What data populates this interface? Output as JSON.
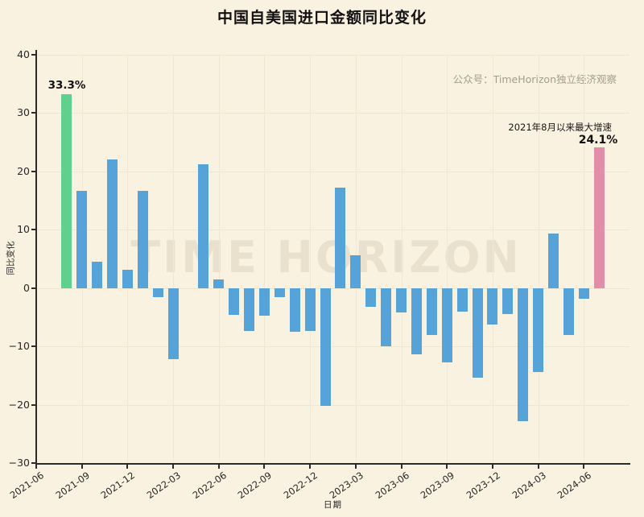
{
  "title": "中国自美国进口金额同比变化",
  "source_note": "公众号：TimeHorizon独立经济观察",
  "watermark": "TIME HORIZON",
  "chart_data": {
    "type": "bar",
    "title": "中国自美国进口金额同比变化",
    "xlabel": "日期",
    "ylabel": "同比变化",
    "ylim": [
      -30,
      40
    ],
    "grid": true,
    "x_domain_start": "2021-06",
    "x_domain_months": 39,
    "y_ticks": [
      40,
      30,
      20,
      10,
      0,
      -10,
      -20,
      -30
    ],
    "x_ticks": [
      "2021-06",
      "2021-09",
      "2021-12",
      "2022-03",
      "2022-06",
      "2022-09",
      "2022-12",
      "2023-03",
      "2023-06",
      "2023-09",
      "2023-12",
      "2024-03",
      "2024-06"
    ],
    "x": [
      "2021-08",
      "2021-09",
      "2021-10",
      "2021-11",
      "2021-12",
      "2022-01",
      "2022-02",
      "2022-03",
      "2022-04",
      "2022-05",
      "2022-06",
      "2022-07",
      "2022-08",
      "2022-09",
      "2022-10",
      "2022-11",
      "2022-12",
      "2023-01",
      "2023-02",
      "2023-03",
      "2023-04",
      "2023-05",
      "2023-06",
      "2023-07",
      "2023-08",
      "2023-09",
      "2023-10",
      "2023-11",
      "2023-12",
      "2024-01",
      "2024-02",
      "2024-03",
      "2024-04",
      "2024-05",
      "2024-06",
      "2024-07"
    ],
    "values": [
      33.3,
      16.6,
      4.5,
      22.1,
      3.1,
      16.7,
      -1.5,
      -12.2,
      0.0,
      21.2,
      1.5,
      -4.6,
      -7.4,
      -4.8,
      -1.6,
      -7.5,
      -7.4,
      -20.2,
      17.2,
      5.6,
      -3.2,
      -10.0,
      -4.2,
      -11.4,
      -8.0,
      -12.7,
      -4.0,
      -15.3,
      -6.3,
      -4.4,
      -22.8,
      -14.4,
      9.3,
      -8.0,
      -1.8,
      24.1
    ],
    "colors": {
      "default": "#55a3d9",
      "highlight_first": "#5fd08d",
      "highlight_last": "#e18ea9",
      "background": "#f9f2e1"
    },
    "highlighted_bars": {
      "2021-08": "#5fd08d",
      "2024-07": "#e18ea9"
    },
    "annotations": [
      {
        "text": "33.3%",
        "target": "2021-08",
        "role": "value-label"
      },
      {
        "text": "2021年8月以来最大增速",
        "target": "2024-07",
        "role": "note"
      },
      {
        "text": "24.1%",
        "target": "2024-07",
        "role": "value-label"
      }
    ],
    "legend": null
  }
}
